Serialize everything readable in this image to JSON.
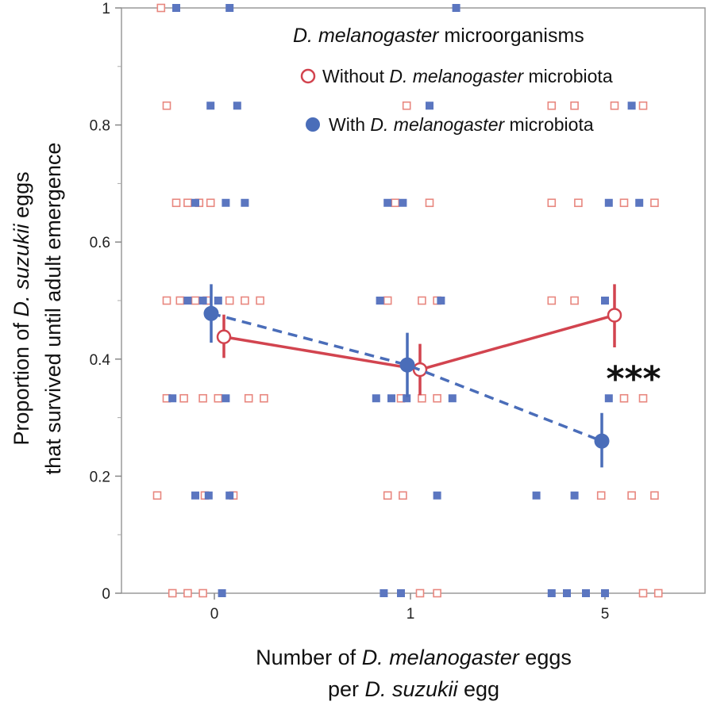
{
  "chart_data": {
    "type": "scatter",
    "title": "",
    "xlabel_lines": [
      {
        "parts": [
          {
            "t": "Number of ",
            "i": false
          },
          {
            "t": "D. melanogaster",
            "i": true
          },
          {
            "t": " eggs",
            "i": false
          }
        ]
      },
      {
        "parts": [
          {
            "t": "per ",
            "i": false
          },
          {
            "t": "D. suzukii",
            "i": true
          },
          {
            "t": " egg",
            "i": false
          }
        ]
      }
    ],
    "ylabel_lines": [
      {
        "parts": [
          {
            "t": "Proportion of ",
            "i": false
          },
          {
            "t": "D. suzukii",
            "i": true
          },
          {
            "t": " eggs",
            "i": false
          }
        ]
      },
      {
        "parts": [
          {
            "t": "that survived until adult emergence",
            "i": false
          }
        ]
      }
    ],
    "categories": [
      "0",
      "1",
      "5"
    ],
    "ylim": [
      0,
      1
    ],
    "yticks": [
      0,
      0.2,
      0.4,
      0.6,
      0.8,
      1
    ],
    "ytick_labels": [
      "0",
      "0.2",
      "0.4",
      "0.6",
      "0.8",
      "1"
    ],
    "legend": {
      "position": "top-right",
      "title_parts": [
        {
          "t": "D. melanogaster",
          "i": true
        },
        {
          "t": " microorganisms",
          "i": false
        }
      ],
      "entries": [
        {
          "series": "without",
          "parts": [
            {
              "t": "Without ",
              "i": false
            },
            {
              "t": "D. melanogaster",
              "i": true
            },
            {
              "t": " microbiota",
              "i": false
            }
          ]
        },
        {
          "series": "with",
          "parts": [
            {
              "t": "With ",
              "i": false
            },
            {
              "t": "D. melanogaster",
              "i": true
            },
            {
              "t": " microbiota",
              "i": false
            }
          ]
        }
      ]
    },
    "series": [
      {
        "name": "without",
        "color": "#d2444f",
        "marker": "open-circle",
        "line_style": "solid",
        "means": [
          0.438,
          0.382,
          0.475
        ],
        "errors": [
          [
            0.402,
            0.476
          ],
          [
            0.338,
            0.426
          ],
          [
            0.42,
            0.528
          ]
        ],
        "raw_points": [
          [
            [
              -0.28,
              1.0
            ],
            [
              -0.25,
              0.833
            ],
            [
              -0.2,
              0.667
            ],
            [
              -0.14,
              0.667
            ],
            [
              -0.08,
              0.667
            ],
            [
              -0.02,
              0.667
            ],
            [
              -0.25,
              0.5
            ],
            [
              -0.18,
              0.5
            ],
            [
              -0.1,
              0.5
            ],
            [
              -0.04,
              0.5
            ],
            [
              0.08,
              0.5
            ],
            [
              0.16,
              0.5
            ],
            [
              0.24,
              0.5
            ],
            [
              -0.25,
              0.333
            ],
            [
              -0.16,
              0.333
            ],
            [
              -0.06,
              0.333
            ],
            [
              0.02,
              0.333
            ],
            [
              0.18,
              0.333
            ],
            [
              0.26,
              0.333
            ],
            [
              -0.3,
              0.167
            ],
            [
              -0.05,
              0.167
            ],
            [
              0.1,
              0.167
            ],
            [
              -0.22,
              0.0
            ],
            [
              -0.14,
              0.0
            ],
            [
              -0.06,
              0.0
            ]
          ],
          [
            [
              0.98,
              0.833
            ],
            [
              0.92,
              0.667
            ],
            [
              1.1,
              0.667
            ],
            [
              0.88,
              0.5
            ],
            [
              1.06,
              0.5
            ],
            [
              1.14,
              0.5
            ],
            [
              0.95,
              0.333
            ],
            [
              1.06,
              0.333
            ],
            [
              1.14,
              0.333
            ],
            [
              0.88,
              0.167
            ],
            [
              0.96,
              0.167
            ],
            [
              1.14,
              0.0
            ],
            [
              1.05,
              0.0
            ]
          ],
          [
            [
              4.72,
              0.833
            ],
            [
              4.84,
              0.833
            ],
            [
              5.05,
              0.833
            ],
            [
              5.2,
              0.833
            ],
            [
              4.72,
              0.667
            ],
            [
              4.86,
              0.667
            ],
            [
              5.1,
              0.667
            ],
            [
              5.26,
              0.667
            ],
            [
              4.72,
              0.5
            ],
            [
              4.84,
              0.5
            ],
            [
              5.1,
              0.333
            ],
            [
              5.2,
              0.333
            ],
            [
              4.98,
              0.167
            ],
            [
              5.14,
              0.167
            ],
            [
              5.26,
              0.167
            ],
            [
              5.2,
              0.0
            ],
            [
              5.28,
              0.0
            ]
          ]
        ]
      },
      {
        "name": "with",
        "color": "#4a6db9",
        "marker": "filled-circle",
        "line_style": "dashed",
        "means": [
          0.478,
          0.39,
          0.26
        ],
        "errors": [
          [
            0.428,
            0.528
          ],
          [
            0.335,
            0.445
          ],
          [
            0.215,
            0.308
          ]
        ],
        "raw_points": [
          [
            [
              -0.2,
              1.0
            ],
            [
              0.08,
              1.0
            ],
            [
              -0.02,
              0.833
            ],
            [
              0.12,
              0.833
            ],
            [
              -0.1,
              0.667
            ],
            [
              0.06,
              0.667
            ],
            [
              0.16,
              0.667
            ],
            [
              -0.14,
              0.5
            ],
            [
              -0.06,
              0.5
            ],
            [
              0.02,
              0.5
            ],
            [
              -0.22,
              0.333
            ],
            [
              0.06,
              0.333
            ],
            [
              -0.1,
              0.167
            ],
            [
              -0.03,
              0.167
            ],
            [
              0.08,
              0.167
            ],
            [
              0.04,
              0.0
            ]
          ],
          [
            [
              1.24,
              1.0
            ],
            [
              1.1,
              0.833
            ],
            [
              0.88,
              0.667
            ],
            [
              0.96,
              0.667
            ],
            [
              0.84,
              0.5
            ],
            [
              1.16,
              0.5
            ],
            [
              0.82,
              0.333
            ],
            [
              0.9,
              0.333
            ],
            [
              0.98,
              0.333
            ],
            [
              1.22,
              0.333
            ],
            [
              1.14,
              0.167
            ],
            [
              0.86,
              0.0
            ],
            [
              0.95,
              0.0
            ]
          ],
          [
            [
              5.14,
              0.833
            ],
            [
              5.02,
              0.667
            ],
            [
              5.18,
              0.667
            ],
            [
              5.0,
              0.5
            ],
            [
              5.02,
              0.333
            ],
            [
              4.64,
              0.167
            ],
            [
              4.84,
              0.167
            ],
            [
              4.72,
              0.0
            ],
            [
              4.8,
              0.0
            ],
            [
              4.9,
              0.0
            ],
            [
              5.0,
              0.0
            ]
          ]
        ]
      }
    ],
    "annotations": [
      {
        "text": "***",
        "category": "5",
        "y": 0.36
      }
    ]
  }
}
